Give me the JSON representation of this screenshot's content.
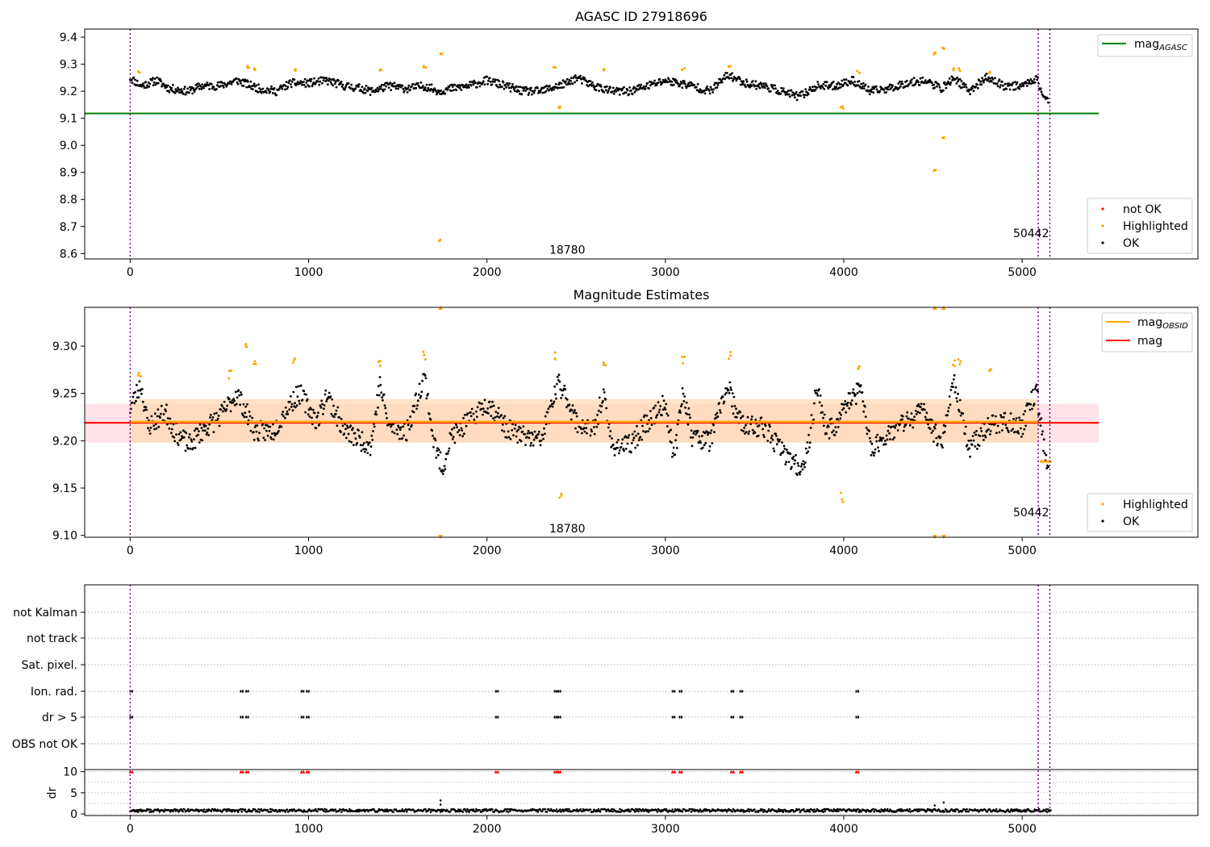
{
  "chart_data": [
    {
      "type": "scatter",
      "title": "AGASC ID 27918696",
      "xlim": [
        -255,
        5985
      ],
      "ylim": [
        8.58,
        9.43
      ],
      "xticks": [
        0,
        1000,
        2000,
        3000,
        4000,
        5000
      ],
      "yticks": [
        8.6,
        8.7,
        8.8,
        8.9,
        9.0,
        9.1,
        9.2,
        9.3,
        9.4
      ],
      "ytick_labels": [
        "8.6",
        "8.7",
        "8.8",
        "8.9",
        "9.0",
        "9.1",
        "9.2",
        "9.3",
        "9.4"
      ],
      "grid": false,
      "vlines": [
        0,
        5090,
        5155
      ],
      "hline": {
        "y": 9.118,
        "x_range": [
          -255,
          5430
        ],
        "color": "#008000"
      },
      "annotations": [
        {
          "text": "18780",
          "x": 2450,
          "y": 8.6
        },
        {
          "text": "50442",
          "x": 5050,
          "y": 8.66
        }
      ],
      "legend_top": {
        "placement": "upper right",
        "entries": [
          {
            "label": "mag",
            "subscript": "AGASC",
            "color": "#008000"
          }
        ]
      },
      "legend_bottom": {
        "placement": "lower right",
        "entries": [
          {
            "label": "not OK",
            "color": "#ff0000"
          },
          {
            "label": "Highlighted",
            "color": "#ffa500"
          },
          {
            "label": "OK",
            "color": "#000000"
          }
        ]
      },
      "series": [
        {
          "name": "OK",
          "color": "#000000",
          "points": [
            [
              0,
              9.25
            ],
            [
              60,
              9.22
            ],
            [
              150,
              9.24
            ],
            [
              220,
              9.21
            ],
            [
              330,
              9.2
            ],
            [
              400,
              9.22
            ],
            [
              500,
              9.22
            ],
            [
              600,
              9.24
            ],
            [
              720,
              9.21
            ],
            [
              820,
              9.2
            ],
            [
              900,
              9.23
            ],
            [
              1000,
              9.23
            ],
            [
              1100,
              9.24
            ],
            [
              1200,
              9.22
            ],
            [
              1300,
              9.21
            ],
            [
              1350,
              9.2
            ],
            [
              1450,
              9.22
            ],
            [
              1550,
              9.21
            ],
            [
              1650,
              9.22
            ],
            [
              1730,
              9.2
            ],
            [
              1800,
              9.21
            ],
            [
              1900,
              9.22
            ],
            [
              2000,
              9.24
            ],
            [
              2100,
              9.22
            ],
            [
              2200,
              9.2
            ],
            [
              2300,
              9.2
            ],
            [
              2450,
              9.23
            ],
            [
              2500,
              9.25
            ],
            [
              2600,
              9.22
            ],
            [
              2700,
              9.2
            ],
            [
              2800,
              9.2
            ],
            [
              2900,
              9.22
            ],
            [
              3000,
              9.24
            ],
            [
              3150,
              9.22
            ],
            [
              3250,
              9.2
            ],
            [
              3350,
              9.26
            ],
            [
              3450,
              9.23
            ],
            [
              3550,
              9.22
            ],
            [
              3650,
              9.2
            ],
            [
              3750,
              9.18
            ],
            [
              3850,
              9.22
            ],
            [
              3950,
              9.22
            ],
            [
              4050,
              9.24
            ],
            [
              4150,
              9.2
            ],
            [
              4250,
              9.21
            ],
            [
              4350,
              9.23
            ],
            [
              4450,
              9.24
            ],
            [
              4550,
              9.21
            ],
            [
              4620,
              9.25
            ],
            [
              4700,
              9.2
            ],
            [
              4800,
              9.25
            ],
            [
              4900,
              9.22
            ],
            [
              5000,
              9.22
            ],
            [
              5080,
              9.25
            ],
            [
              5120,
              9.18
            ],
            [
              5150,
              9.17
            ]
          ]
        },
        {
          "name": "Highlighted",
          "color": "#ffa500",
          "points": [
            [
              50,
              9.27
            ],
            [
              665,
              9.29
            ],
            [
              700,
              9.28
            ],
            [
              920,
              9.28
            ],
            [
              1400,
              9.28
            ],
            [
              1650,
              9.29
            ],
            [
              1740,
              9.34
            ],
            [
              1740,
              8.65
            ],
            [
              2380,
              9.29
            ],
            [
              2410,
              9.14
            ],
            [
              2660,
              9.28
            ],
            [
              3100,
              9.28
            ],
            [
              3360,
              9.29
            ],
            [
              3990,
              9.14
            ],
            [
              4080,
              9.27
            ],
            [
              4510,
              9.34
            ],
            [
              4510,
              8.91
            ],
            [
              4560,
              9.36
            ],
            [
              4560,
              9.03
            ],
            [
              4620,
              9.28
            ],
            [
              4650,
              9.28
            ],
            [
              4820,
              9.27
            ]
          ]
        }
      ]
    },
    {
      "type": "scatter",
      "title": "Magnitude Estimates",
      "xlim": [
        -255,
        5985
      ],
      "ylim": [
        9.098,
        9.341
      ],
      "xticks": [
        0,
        1000,
        2000,
        3000,
        4000,
        5000
      ],
      "yticks": [
        9.1,
        9.15,
        9.2,
        9.25,
        9.3
      ],
      "ytick_labels": [
        "9.10",
        "9.15",
        "9.20",
        "9.25",
        "9.30"
      ],
      "grid": false,
      "vlines": [
        0,
        5090,
        5155
      ],
      "mag": {
        "value": 9.219,
        "band": [
          9.198,
          9.239
        ],
        "color": "#ff0000"
      },
      "mag_obsid": {
        "color": "#ffa500",
        "band_color": "#ffd8b0",
        "segments": [
          {
            "x": [
              -255,
              5090
            ],
            "value": 9.22,
            "band": [
              9.198,
              9.244
            ]
          },
          {
            "x": [
              5100,
              5165
            ],
            "value": 9.178,
            "band": [
              9.176,
              9.181
            ]
          }
        ]
      },
      "annotations": [
        {
          "text": "18780",
          "x": 2450,
          "y": 9.103
        },
        {
          "text": "50442",
          "x": 5050,
          "y": 9.12
        }
      ],
      "legend_top": {
        "placement": "upper right",
        "entries": [
          {
            "label": "mag",
            "subscript": "OBSID",
            "color": "#ffa500"
          },
          {
            "label": "mag",
            "color": "#ff0000"
          }
        ]
      },
      "legend_bottom": {
        "placement": "lower right",
        "entries": [
          {
            "label": "Highlighted",
            "color": "#ffa500"
          },
          {
            "label": "OK",
            "color": "#000000"
          }
        ]
      },
      "series": [
        {
          "name": "OK",
          "color": "#000000",
          "points": [
            [
              0,
              9.235
            ],
            [
              60,
              9.26
            ],
            [
              100,
              9.215
            ],
            [
              200,
              9.23
            ],
            [
              250,
              9.21
            ],
            [
              330,
              9.195
            ],
            [
              400,
              9.21
            ],
            [
              500,
              9.225
            ],
            [
              600,
              9.25
            ],
            [
              700,
              9.21
            ],
            [
              800,
              9.21
            ],
            [
              900,
              9.24
            ],
            [
              950,
              9.25
            ],
            [
              1050,
              9.22
            ],
            [
              1100,
              9.25
            ],
            [
              1200,
              9.21
            ],
            [
              1300,
              9.2
            ],
            [
              1350,
              9.195
            ],
            [
              1400,
              9.26
            ],
            [
              1450,
              9.215
            ],
            [
              1550,
              9.21
            ],
            [
              1650,
              9.27
            ],
            [
              1700,
              9.2
            ],
            [
              1750,
              9.17
            ],
            [
              1800,
              9.205
            ],
            [
              1900,
              9.22
            ],
            [
              2000,
              9.24
            ],
            [
              2050,
              9.23
            ],
            [
              2100,
              9.215
            ],
            [
              2200,
              9.205
            ],
            [
              2300,
              9.2
            ],
            [
              2400,
              9.26
            ],
            [
              2450,
              9.245
            ],
            [
              2500,
              9.22
            ],
            [
              2600,
              9.21
            ],
            [
              2650,
              9.25
            ],
            [
              2700,
              9.195
            ],
            [
              2800,
              9.195
            ],
            [
              2900,
              9.22
            ],
            [
              3000,
              9.24
            ],
            [
              3050,
              9.18
            ],
            [
              3100,
              9.255
            ],
            [
              3150,
              9.205
            ],
            [
              3250,
              9.2
            ],
            [
              3350,
              9.26
            ],
            [
              3400,
              9.225
            ],
            [
              3450,
              9.215
            ],
            [
              3550,
              9.215
            ],
            [
              3650,
              9.19
            ],
            [
              3700,
              9.18
            ],
            [
              3750,
              9.17
            ],
            [
              3800,
              9.19
            ],
            [
              3850,
              9.26
            ],
            [
              3900,
              9.21
            ],
            [
              3950,
              9.215
            ],
            [
              4000,
              9.235
            ],
            [
              4050,
              9.245
            ],
            [
              4100,
              9.255
            ],
            [
              4150,
              9.19
            ],
            [
              4200,
              9.2
            ],
            [
              4300,
              9.215
            ],
            [
              4400,
              9.225
            ],
            [
              4450,
              9.235
            ],
            [
              4500,
              9.21
            ],
            [
              4550,
              9.2
            ],
            [
              4620,
              9.265
            ],
            [
              4700,
              9.19
            ],
            [
              4800,
              9.215
            ],
            [
              4900,
              9.22
            ],
            [
              5000,
              9.215
            ],
            [
              5080,
              9.255
            ],
            [
              5130,
              9.18
            ],
            [
              5150,
              9.16
            ]
          ]
        },
        {
          "name": "Highlighted",
          "color": "#ffa500",
          "points": [
            [
              50,
              9.273
            ],
            [
              560,
              9.27
            ],
            [
              655,
              9.3
            ],
            [
              700,
              9.28
            ],
            [
              920,
              9.285
            ],
            [
              1400,
              9.28
            ],
            [
              1650,
              9.29
            ],
            [
              1740,
              9.34
            ],
            [
              1740,
              9.1
            ],
            [
              2380,
              9.29
            ],
            [
              2410,
              9.14
            ],
            [
              2660,
              9.282
            ],
            [
              3100,
              9.285
            ],
            [
              3360,
              9.29
            ],
            [
              3990,
              9.14
            ],
            [
              4080,
              9.28
            ],
            [
              4510,
              9.34
            ],
            [
              4510,
              9.1
            ],
            [
              4560,
              9.34
            ],
            [
              4560,
              9.1
            ],
            [
              4620,
              9.283
            ],
            [
              4650,
              9.283
            ],
            [
              4820,
              9.276
            ]
          ]
        }
      ]
    },
    {
      "type": "scatter",
      "title": "",
      "xlim": [
        -255,
        5985
      ],
      "xticks": [
        0,
        1000,
        2000,
        3000,
        4000,
        5000
      ],
      "vlines": [
        0,
        5090,
        5155
      ],
      "flag_rows": [
        "not Kalman",
        "not track",
        "Sat. pixel.",
        "Ion. rad.",
        "dr > 5",
        "OBS not OK"
      ],
      "flag_points": {
        "Ion. rad.": [
          0,
          620,
          650,
          960,
          990,
          2050,
          2380,
          2400,
          3040,
          3080,
          3370,
          3420,
          4070
        ],
        "dr > 5": [
          0,
          620,
          650,
          960,
          990,
          2050,
          2380,
          2400,
          3040,
          3080,
          3370,
          3420,
          4070
        ]
      },
      "ylabel": "dr",
      "dr_ylim": [
        0,
        10.5
      ],
      "dr_yticks": [
        0,
        5,
        10
      ],
      "dr_ytick_labels": [
        "0",
        "5",
        "10"
      ],
      "dr_high": {
        "color": "#ff0000",
        "value": 10,
        "x": [
          0,
          620,
          650,
          960,
          990,
          2050,
          2380,
          2400,
          3040,
          3080,
          3370,
          3420,
          4070
        ]
      },
      "dr_outliers": [
        [
          1740,
          3.2
        ],
        [
          1740,
          2.2
        ],
        [
          4510,
          2.0
        ],
        [
          4560,
          2.7
        ]
      ]
    }
  ]
}
